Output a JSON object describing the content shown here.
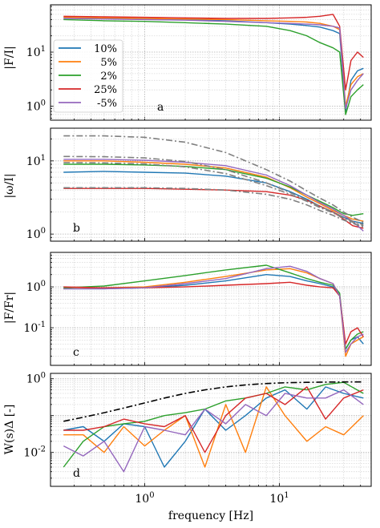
{
  "figure": {
    "xlabel": "frequency [Hz]",
    "xscale": "log",
    "xlim": [
      0.2,
      48
    ],
    "x_ticks": [
      {
        "value": 1,
        "label": "10^0"
      },
      {
        "value": 10,
        "label": "10^1"
      }
    ],
    "grid": true
  },
  "legend": {
    "placement": "panel-a-left",
    "entries": [
      {
        "label": "10%",
        "color": "#1f77b4"
      },
      {
        "label": "5%",
        "color": "#ff7f0e"
      },
      {
        "label": "2%",
        "color": "#2ca02c"
      },
      {
        "label": "25%",
        "color": "#d62728"
      },
      {
        "label": "-5%",
        "color": "#9467bd"
      }
    ]
  },
  "chart_data": [
    {
      "panel": "a",
      "type": "line",
      "ylabel": "|F/I|",
      "yscale": "log",
      "ylim": [
        0.55,
        75
      ],
      "y_ticks": [
        {
          "value": 1,
          "label": "10^0"
        },
        {
          "value": 10,
          "label": "10^1"
        }
      ],
      "x": [
        0.25,
        0.5,
        1,
        2,
        4,
        8,
        12,
        16,
        20,
        25,
        28,
        31,
        34,
        38,
        42
      ],
      "series": [
        {
          "name": "10%",
          "color": "#1f77b4",
          "values": [
            43,
            42,
            41,
            40,
            38,
            35,
            33,
            31,
            29,
            25,
            22,
            0.8,
            3,
            4.5,
            5
          ]
        },
        {
          "name": "5%",
          "color": "#ff7f0e",
          "values": [
            44,
            43,
            42,
            41,
            40,
            38,
            37,
            36,
            34,
            30,
            26,
            1,
            2.5,
            3.5,
            4
          ]
        },
        {
          "name": "2%",
          "color": "#2ca02c",
          "values": [
            40,
            38,
            37,
            35,
            33,
            30,
            25,
            20,
            15,
            12,
            10,
            0.7,
            1.5,
            2,
            2.5
          ]
        },
        {
          "name": "25%",
          "color": "#d62728",
          "values": [
            46,
            45,
            44,
            43,
            42,
            42,
            43,
            44,
            46,
            50,
            30,
            2,
            7,
            10,
            8
          ]
        },
        {
          "name": "-5%",
          "color": "#9467bd",
          "values": [
            42,
            41,
            40,
            39,
            37,
            35,
            34,
            33,
            32,
            30,
            28,
            0.9,
            2,
            3,
            4
          ]
        }
      ],
      "annotation": "a"
    },
    {
      "panel": "b",
      "type": "line",
      "ylabel": "|ω/I|",
      "yscale": "log",
      "ylim": [
        0.8,
        28
      ],
      "y_ticks": [
        {
          "value": 1,
          "label": "10^0"
        },
        {
          "value": 10,
          "label": "10^1"
        }
      ],
      "x": [
        0.25,
        0.5,
        1,
        2,
        4,
        8,
        12,
        16,
        20,
        25,
        30,
        35,
        42
      ],
      "series": [
        {
          "name": "10%",
          "color": "#1f77b4",
          "values": [
            7,
            7.2,
            7,
            6.8,
            6.2,
            5,
            3.8,
            3,
            2.4,
            2,
            1.7,
            1.5,
            1.4
          ]
        },
        {
          "name": "5%",
          "color": "#ff7f0e",
          "values": [
            10,
            10,
            9.6,
            9,
            8,
            6,
            4.3,
            3.2,
            2.6,
            2.1,
            1.8,
            1.6,
            1.5
          ]
        },
        {
          "name": "2%",
          "color": "#2ca02c",
          "values": [
            9,
            9,
            8.8,
            8.4,
            7.6,
            5.8,
            4.4,
            3.4,
            2.8,
            2.3,
            1.9,
            1.8,
            1.9
          ]
        },
        {
          "name": "25%",
          "color": "#d62728",
          "values": [
            4.2,
            4.2,
            4.2,
            4.1,
            4,
            3.8,
            3.4,
            2.9,
            2.4,
            2,
            1.6,
            1.3,
            1.2
          ]
        },
        {
          "name": "-5%",
          "color": "#9467bd",
          "values": [
            10.5,
            10.5,
            10.2,
            9.6,
            8.6,
            6.4,
            4.6,
            3.4,
            2.7,
            2.2,
            1.8,
            1.5,
            1.1
          ]
        },
        {
          "style": "dashdot",
          "color": "#808080",
          "values": [
            22,
            22,
            21,
            18,
            13,
            7.6,
            5.3,
            3.9,
            3.1,
            2.5,
            2,
            1.7,
            1.45
          ]
        },
        {
          "style": "dashdot",
          "color": "#808080",
          "values": [
            11.5,
            11.4,
            11,
            9.8,
            7.6,
            5,
            3.7,
            2.9,
            2.4,
            2,
            1.7,
            1.5,
            1.35
          ]
        },
        {
          "style": "dashdot",
          "color": "#808080",
          "values": [
            9.5,
            9.4,
            9.1,
            8.3,
            6.7,
            4.6,
            3.5,
            2.8,
            2.3,
            1.95,
            1.65,
            1.45,
            1.3
          ]
        },
        {
          "style": "dashdot",
          "color": "#808080",
          "values": [
            4.3,
            4.3,
            4.3,
            4.2,
            4,
            3.5,
            3,
            2.5,
            2.1,
            1.8,
            1.55,
            1.4,
            1.25
          ]
        }
      ],
      "annotation": "b"
    },
    {
      "panel": "c",
      "type": "line",
      "ylabel": "|F/Fr|",
      "yscale": "log",
      "ylim": [
        0.012,
        7
      ],
      "y_ticks": [
        {
          "value": 0.1,
          "label": "10^-1"
        },
        {
          "value": 1,
          "label": "10^0"
        }
      ],
      "x": [
        0.25,
        0.5,
        1,
        2,
        4,
        8,
        12,
        16,
        20,
        25,
        28,
        31,
        34,
        38,
        42
      ],
      "series": [
        {
          "name": "10%",
          "color": "#1f77b4",
          "values": [
            0.9,
            0.9,
            0.95,
            1.1,
            1.4,
            2,
            1.8,
            1.4,
            1.2,
            1,
            0.6,
            0.03,
            0.05,
            0.06,
            0.04
          ]
        },
        {
          "name": "5%",
          "color": "#ff7f0e",
          "values": [
            0.9,
            0.95,
            1,
            1.3,
            1.8,
            2.6,
            2.8,
            2.2,
            1.6,
            1.2,
            0.6,
            0.02,
            0.04,
            0.05,
            0.06
          ]
        },
        {
          "name": "2%",
          "color": "#2ca02c",
          "values": [
            0.95,
            1.05,
            1.4,
            1.9,
            2.6,
            3.4,
            2.2,
            1.6,
            1.3,
            1.1,
            0.7,
            0.03,
            0.05,
            0.07,
            0.08
          ]
        },
        {
          "name": "25%",
          "color": "#d62728",
          "values": [
            1,
            0.95,
            0.95,
            1,
            1.1,
            1.2,
            1.3,
            1.1,
            1,
            0.95,
            0.6,
            0.04,
            0.08,
            0.1,
            0.06
          ]
        },
        {
          "name": "-5%",
          "color": "#9467bd",
          "values": [
            0.9,
            0.9,
            0.95,
            1.2,
            1.6,
            2.8,
            3.2,
            2.4,
            1.6,
            1.2,
            0.6,
            0.025,
            0.04,
            0.06,
            0.07
          ]
        }
      ],
      "annotation": "c"
    },
    {
      "panel": "d",
      "type": "line",
      "ylabel": "W(s)Δ [-]",
      "yscale": "log",
      "ylim": [
        0.0012,
        1.4
      ],
      "y_ticks": [
        {
          "value": 0.01,
          "label": "10^-2"
        },
        {
          "value": 1,
          "label": "10^0"
        }
      ],
      "x": [
        0.25,
        0.35,
        0.5,
        0.7,
        1,
        1.4,
        2,
        2.8,
        4,
        5.6,
        8,
        11,
        16,
        22,
        30,
        42
      ],
      "series": [
        {
          "name": "10%",
          "color": "#1f77b4",
          "values": [
            0.04,
            0.05,
            0.02,
            0.06,
            0.05,
            0.004,
            0.02,
            0.15,
            0.04,
            0.1,
            0.3,
            0.5,
            0.15,
            0.6,
            0.4,
            0.3
          ]
        },
        {
          "name": "5%",
          "color": "#ff7f0e",
          "values": [
            0.03,
            0.03,
            0.01,
            0.05,
            0.015,
            0.04,
            0.1,
            0.004,
            0.2,
            0.01,
            0.6,
            0.1,
            0.02,
            0.05,
            0.03,
            0.1
          ]
        },
        {
          "name": "2%",
          "color": "#2ca02c",
          "values": [
            0.004,
            0.02,
            0.05,
            0.06,
            0.07,
            0.1,
            0.12,
            0.15,
            0.25,
            0.3,
            0.4,
            0.6,
            0.5,
            0.7,
            0.8,
            0.4
          ]
        },
        {
          "name": "25%",
          "color": "#d62728",
          "values": [
            0.04,
            0.04,
            0.05,
            0.08,
            0.06,
            0.05,
            0.1,
            0.01,
            0.1,
            0.3,
            0.4,
            0.2,
            0.6,
            0.08,
            0.3,
            0.5
          ]
        },
        {
          "name": "-5%",
          "color": "#9467bd",
          "values": [
            0.015,
            0.008,
            0.02,
            0.003,
            0.05,
            0.04,
            0.03,
            0.15,
            0.06,
            0.2,
            0.1,
            0.4,
            0.3,
            0.3,
            0.5,
            0.2
          ]
        },
        {
          "style": "dashdot",
          "color": "#000000",
          "values": [
            0.07,
            0.09,
            0.12,
            0.16,
            0.22,
            0.3,
            0.4,
            0.5,
            0.6,
            0.68,
            0.74,
            0.78,
            0.8,
            0.81,
            0.82,
            0.82
          ]
        }
      ],
      "annotation": "d"
    }
  ]
}
